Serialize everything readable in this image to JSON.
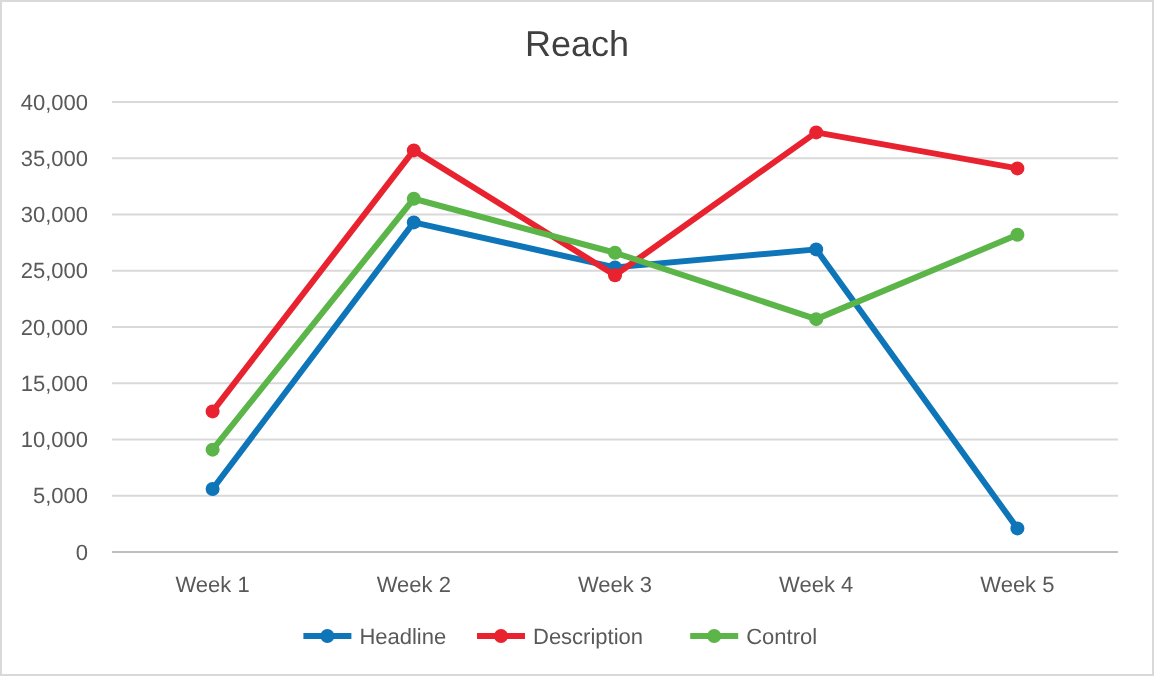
{
  "chart_data": {
    "type": "line",
    "title": "Reach",
    "categories": [
      "Week 1",
      "Week 2",
      "Week 3",
      "Week 4",
      "Week 5"
    ],
    "series": [
      {
        "name": "Headline",
        "color": "#0e75b8",
        "values": [
          5600,
          29300,
          25300,
          26900,
          2100
        ]
      },
      {
        "name": "Description",
        "color": "#e8232f",
        "values": [
          12500,
          35700,
          24600,
          37300,
          34100
        ]
      },
      {
        "name": "Control",
        "color": "#5bb548",
        "values": [
          9100,
          31400,
          26600,
          20700,
          28200
        ]
      }
    ],
    "ylim": [
      0,
      40000
    ],
    "yticks": [
      {
        "value": 0,
        "label": "0"
      },
      {
        "value": 5000,
        "label": "5,000"
      },
      {
        "value": 10000,
        "label": "10,000"
      },
      {
        "value": 15000,
        "label": "15,000"
      },
      {
        "value": 20000,
        "label": "20,000"
      },
      {
        "value": 25000,
        "label": "25,000"
      },
      {
        "value": 30000,
        "label": "30,000"
      },
      {
        "value": 35000,
        "label": "35,000"
      },
      {
        "value": 40000,
        "label": "40,000"
      }
    ],
    "grid": "y",
    "legend": "bottom",
    "marker": "circle",
    "line_style": "solid"
  }
}
